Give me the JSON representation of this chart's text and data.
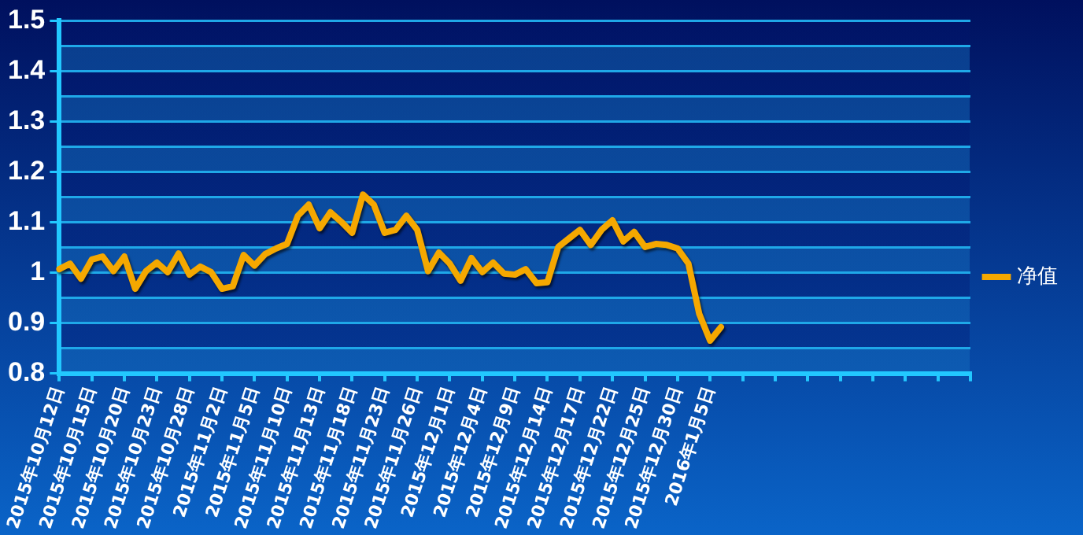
{
  "chart_data": {
    "type": "line",
    "categories": [
      "2015年10月12日",
      null,
      null,
      "2015年10月15日",
      null,
      null,
      "2015年10月20日",
      null,
      null,
      "2015年10月23日",
      null,
      null,
      "2015年10月28日",
      null,
      null,
      "2015年11月2日",
      null,
      null,
      "2015年11月5日",
      null,
      null,
      "2015年11月10日",
      null,
      null,
      "2015年11月13日",
      null,
      null,
      "2015年11月18日",
      null,
      null,
      "2015年11月23日",
      null,
      null,
      "2015年11月26日",
      null,
      null,
      "2015年12月1日",
      null,
      null,
      "2015年12月4日",
      null,
      null,
      "2015年12月9日",
      null,
      null,
      "2015年12月14日",
      null,
      null,
      "2015年12月17日",
      null,
      null,
      "2015年12月22日",
      null,
      null,
      "2015年12月25日",
      null,
      null,
      "2015年12月30日",
      null,
      null,
      "2016年1月5日",
      null,
      null,
      null,
      null,
      null,
      null,
      null,
      null,
      null,
      null,
      null,
      null,
      null,
      null,
      null,
      null,
      null,
      null,
      null,
      null,
      null,
      null,
      null,
      null
    ],
    "series": [
      {
        "name": "净值",
        "color": "#f5a800",
        "values": [
          1.007,
          1.018,
          0.988,
          1.026,
          1.032,
          1.003,
          1.032,
          0.968,
          1.003,
          1.02,
          1.001,
          1.038,
          0.996,
          1.012,
          1.001,
          0.968,
          0.973,
          1.035,
          1.014,
          1.037,
          1.048,
          1.057,
          1.113,
          1.135,
          1.088,
          1.12,
          1.101,
          1.079,
          1.155,
          1.135,
          1.079,
          1.085,
          1.113,
          1.085,
          1.003,
          1.04,
          1.018,
          0.984,
          1.029,
          1.001,
          1.02,
          0.998,
          0.996,
          1.007,
          0.979,
          0.981,
          1.051,
          1.068,
          1.085,
          1.055,
          1.085,
          1.104,
          1.062,
          1.081,
          1.051,
          1.057,
          1.055,
          1.048,
          1.018,
          0.918,
          0.865,
          0.892,
          null,
          null,
          null,
          null,
          null,
          null,
          null,
          null,
          null,
          null,
          null,
          null,
          null,
          null,
          null,
          null,
          null,
          null,
          null,
          null,
          null,
          null,
          null
        ]
      }
    ],
    "ylim": [
      0.8,
      1.5
    ],
    "yticks": [
      0.8,
      {
        "value": 0.85,
        "label": null
      },
      0.9,
      {
        "value": 0.95,
        "label": null
      },
      1,
      {
        "value": 1.05,
        "label": null
      },
      1.1,
      {
        "value": 1.15,
        "label": null
      },
      1.2,
      {
        "value": 1.25,
        "label": null
      },
      1.3,
      {
        "value": 1.35,
        "label": null
      },
      1.4,
      {
        "value": 1.45,
        "label": null
      },
      1.5
    ],
    "grid": "y",
    "legend": "right",
    "marker": "none",
    "line_style": "solid"
  }
}
